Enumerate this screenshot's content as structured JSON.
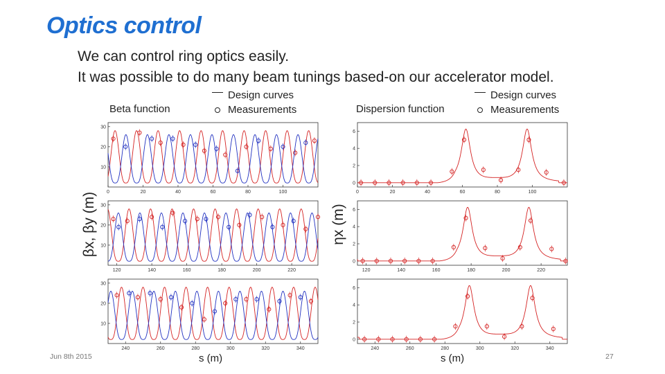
{
  "slide": {
    "title": "Optics control",
    "lines": [
      "We can control ring optics easily.",
      "It was possible to do many beam tunings based-on our accelerator model."
    ],
    "date": "Jun 8th 2015",
    "page": "27"
  },
  "beta": {
    "label": "Beta function",
    "legend": {
      "curves": "Design curves",
      "measurements": "Measurements"
    },
    "ylabel": "βx, βy (m)",
    "xlabel": "s (m)"
  },
  "dispersion": {
    "label": "Dispersion function",
    "legend": {
      "curves": "Design curves",
      "measurements": "Measurements"
    },
    "ylabel": "ηx (m)",
    "xlabel": "s (m)"
  },
  "colors": {
    "betaX": "#d42020",
    "betaY": "#2030c0",
    "eta": "#d42020",
    "axis": "#333333"
  },
  "chart_data": [
    {
      "type": "line",
      "name": "beta-function",
      "panels": [
        {
          "xlim": [
            0,
            120
          ],
          "ylim": [
            0,
            32
          ],
          "xticks": [
            0,
            20,
            40,
            60,
            80,
            100
          ],
          "yticks": [
            10,
            20,
            30
          ]
        },
        {
          "xlim": [
            115,
            235
          ],
          "ylim": [
            0,
            32
          ],
          "xticks": [
            120,
            140,
            160,
            180,
            200,
            220
          ],
          "yticks": [
            10,
            20,
            30
          ]
        },
        {
          "xlim": [
            230,
            350
          ],
          "ylim": [
            0,
            32
          ],
          "xticks": [
            240,
            260,
            280,
            300,
            320,
            340
          ],
          "yticks": [
            10,
            20,
            30
          ]
        }
      ],
      "series": [
        {
          "name": "beta_x",
          "design": {
            "period": 12.3,
            "phase": 4,
            "min": 2,
            "max": 28
          },
          "measurements": [
            [
              3,
              24
            ],
            [
              18,
              27
            ],
            [
              30,
              22
            ],
            [
              43,
              21
            ],
            [
              55,
              18
            ],
            [
              67,
              16
            ],
            [
              79,
              20
            ],
            [
              93,
              19
            ],
            [
              107,
              17
            ],
            [
              118,
              23
            ],
            [
              126,
              22
            ],
            [
              140,
              24
            ],
            [
              152,
              26
            ],
            [
              166,
              23
            ],
            [
              178,
              24
            ],
            [
              190,
              20
            ],
            [
              203,
              24
            ],
            [
              215,
              20
            ],
            [
              228,
              18
            ],
            [
              235,
              24
            ],
            [
              247,
              23
            ],
            [
              260,
              22
            ],
            [
              272,
              18
            ],
            [
              285,
              12
            ],
            [
              297,
              20
            ],
            [
              309,
              22
            ],
            [
              322,
              17
            ],
            [
              334,
              24
            ],
            [
              346,
              21
            ]
          ]
        },
        {
          "name": "beta_y",
          "design": {
            "period": 12.3,
            "phase": 10.2,
            "min": 2,
            "max": 26
          },
          "measurements": [
            [
              10,
              20
            ],
            [
              25,
              24
            ],
            [
              37,
              24
            ],
            [
              50,
              21
            ],
            [
              62,
              19
            ],
            [
              74,
              8
            ],
            [
              86,
              23
            ],
            [
              100,
              20
            ],
            [
              113,
              22
            ],
            [
              121,
              19
            ],
            [
              133,
              23
            ],
            [
              146,
              19
            ],
            [
              159,
              22
            ],
            [
              171,
              23
            ],
            [
              184,
              19
            ],
            [
              196,
              25
            ],
            [
              209,
              19
            ],
            [
              221,
              22
            ],
            [
              242,
              25
            ],
            [
              254,
              25
            ],
            [
              266,
              23
            ],
            [
              278,
              20
            ],
            [
              291,
              16
            ],
            [
              303,
              22
            ],
            [
              315,
              22
            ],
            [
              328,
              21
            ],
            [
              340,
              23
            ]
          ]
        }
      ],
      "xlabel": "s (m)",
      "ylabel": "βx, βy (m)",
      "legend": [
        "Design curves",
        "Measurements"
      ]
    },
    {
      "type": "line",
      "name": "dispersion-function",
      "panels": [
        {
          "xlim": [
            0,
            120
          ],
          "ylim": [
            -0.5,
            7
          ],
          "xticks": [
            0,
            20,
            40,
            60,
            80,
            100
          ],
          "yticks": [
            0,
            2,
            4,
            6
          ]
        },
        {
          "xlim": [
            115,
            235
          ],
          "ylim": [
            -0.5,
            7
          ],
          "xticks": [
            120,
            140,
            160,
            180,
            200,
            220
          ],
          "yticks": [
            0,
            2,
            4,
            6
          ]
        },
        {
          "xlim": [
            230,
            350
          ],
          "ylim": [
            -0.5,
            7
          ],
          "xticks": [
            240,
            260,
            280,
            300,
            320,
            340
          ],
          "yticks": [
            0,
            2,
            4,
            6
          ]
        }
      ],
      "series": [
        {
          "name": "eta_x",
          "design": {
            "zero_until": [
              46,
              162,
              278
            ],
            "peaks": [
              62,
              97,
              178,
              213,
              294,
              329
            ],
            "peak_value": 6.2,
            "valley": 0.2
          },
          "measurements": [
            [
              2,
              0
            ],
            [
              10,
              0
            ],
            [
              18,
              0
            ],
            [
              26,
              0
            ],
            [
              34,
              0
            ],
            [
              42,
              0
            ],
            [
              54,
              1.3
            ],
            [
              61,
              5.0
            ],
            [
              72,
              1.5
            ],
            [
              82,
              0.3
            ],
            [
              92,
              1.5
            ],
            [
              98,
              5.0
            ],
            [
              108,
              1.2
            ],
            [
              118,
              0
            ],
            [
              126,
              0
            ],
            [
              134,
              0
            ],
            [
              142,
              0
            ],
            [
              150,
              0
            ],
            [
              158,
              0
            ],
            [
              170,
              1.6
            ],
            [
              177,
              5.0
            ],
            [
              188,
              1.5
            ],
            [
              198,
              0.3
            ],
            [
              208,
              1.6
            ],
            [
              214,
              4.7
            ],
            [
              226,
              1.4
            ],
            [
              234,
              0
            ],
            [
              242,
              0
            ],
            [
              250,
              0
            ],
            [
              258,
              0
            ],
            [
              266,
              0
            ],
            [
              274,
              0
            ],
            [
              286,
              1.5
            ],
            [
              293,
              5.0
            ],
            [
              304,
              1.5
            ],
            [
              314,
              0.3
            ],
            [
              324,
              1.5
            ],
            [
              330,
              4.8
            ],
            [
              342,
              1.2
            ]
          ]
        }
      ],
      "xlabel": "s (m)",
      "ylabel": "ηx (m)",
      "legend": [
        "Design curves",
        "Measurements"
      ]
    }
  ]
}
